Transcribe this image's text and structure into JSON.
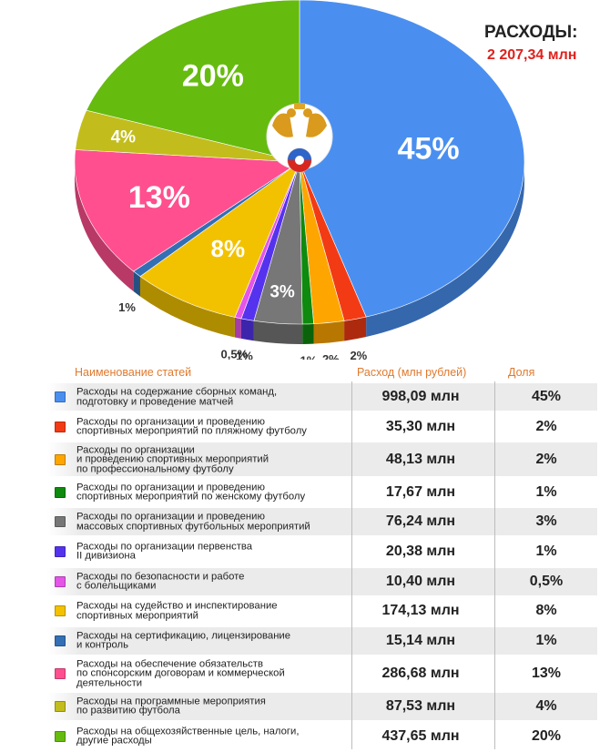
{
  "header": {
    "total_label": "РАСХОДЫ:",
    "total_value": "2 207,34 млн"
  },
  "table": {
    "headers": {
      "name": "Наименование статей",
      "amount": "Расход (млн рублей)",
      "share": "Доля"
    },
    "rows": [
      {
        "name": "Расходы на содержание сборных команд,\nподготовку и проведение матчей",
        "amount": "998,09 млн",
        "share": "45%",
        "color": "#4a8ff0"
      },
      {
        "name": "Расходы по организации и проведению\nспортивных мероприятий по пляжному футболу",
        "amount": "35,30 млн",
        "share": "2%",
        "color": "#f23b14"
      },
      {
        "name": "Расходы по организации\nи проведению спортивных мероприятий\nпо профессиональному футболу",
        "amount": "48,13 млн",
        "share": "2%",
        "color": "#ffa500"
      },
      {
        "name": "Расходы по организации и проведению\nспортивных мероприятий по женскому футболу",
        "amount": "17,67 млн",
        "share": "1%",
        "color": "#0e8a0e"
      },
      {
        "name": "Расходы по организации и проведению\nмассовых спортивных футбольных мероприятий",
        "amount": "76,24 млн",
        "share": "3%",
        "color": "#777777"
      },
      {
        "name": "Расходы по организации первенства\nII дивизиона",
        "amount": "20,38 млн",
        "share": "1%",
        "color": "#5533ee"
      },
      {
        "name": "Расходы по безопасности и работе\nс болельщиками",
        "amount": "10,40 млн",
        "share": "0,5%",
        "color": "#e455e8"
      },
      {
        "name": "Расходы на судейство и инспектирование\nспортивных мероприятий",
        "amount": "174,13 млн",
        "share": "8%",
        "color": "#f2c200"
      },
      {
        "name": "Расходы на сертификацию, лицензирование\nи контроль",
        "amount": "15,14 млн",
        "share": "1%",
        "color": "#336fb5"
      },
      {
        "name": "Расходы на обеспечение обязательств\nпо спонсорским договорам и коммерческой\nдеятельности",
        "amount": "286,68 млн",
        "share": "13%",
        "color": "#ff4f8e"
      },
      {
        "name": "Расходы на программные мероприятия\nпо развитию футбола",
        "amount": "87,53 млн",
        "share": "4%",
        "color": "#c2bd1c"
      },
      {
        "name": "Расходы на общехозяйственные цель, налоги,\nдругие расходы",
        "amount": "437,65 млн",
        "share": "20%",
        "color": "#66bb0f"
      }
    ]
  },
  "chart_data": {
    "type": "pie",
    "title": "РАСХОДЫ:",
    "subtitle": "2 207,34 млн",
    "slices": [
      {
        "name": "Расходы на содержание сборных команд, подготовку и проведение матчей",
        "value": 998.09,
        "label": "45%",
        "color": "#4a8ff0"
      },
      {
        "name": "Расходы по организации и проведению спортивных мероприятий по пляжному футболу",
        "value": 35.3,
        "label": "2%",
        "color": "#f23b14"
      },
      {
        "name": "Расходы по организации и проведению спортивных мероприятий по профессиональному футболу",
        "value": 48.13,
        "label": "2%",
        "color": "#ffa500"
      },
      {
        "name": "Расходы по организации и проведению спортивных мероприятий по женскому футболу",
        "value": 17.67,
        "label": "1%",
        "color": "#0e8a0e"
      },
      {
        "name": "Расходы по организации и проведению массовых спортивных футбольных мероприятий",
        "value": 76.24,
        "label": "3%",
        "color": "#777777"
      },
      {
        "name": "Расходы по организации первенства II дивизиона",
        "value": 20.38,
        "label": "1%",
        "color": "#5533ee"
      },
      {
        "name": "Расходы по безопасности и работе с болельщиками",
        "value": 10.4,
        "label": "0,5%",
        "color": "#e455e8"
      },
      {
        "name": "Расходы на судейство и инспектирование спортивных мероприятий",
        "value": 174.13,
        "label": "8%",
        "color": "#f2c200"
      },
      {
        "name": "Расходы на сертификацию, лицензирование и контроль",
        "value": 15.14,
        "label": "1%",
        "color": "#336fb5"
      },
      {
        "name": "Расходы на обеспечение обязательств по спонсорским договорам и коммерческой деятельности",
        "value": 286.68,
        "label": "13%",
        "color": "#ff4f8e"
      },
      {
        "name": "Расходы на программные мероприятия по развитию футбола",
        "value": 87.53,
        "label": "4%",
        "color": "#c2bd1c"
      },
      {
        "name": "Расходы на общехозяйственные цель, налоги, другие расходы",
        "value": 437.65,
        "label": "20%",
        "color": "#66bb0f"
      }
    ]
  }
}
